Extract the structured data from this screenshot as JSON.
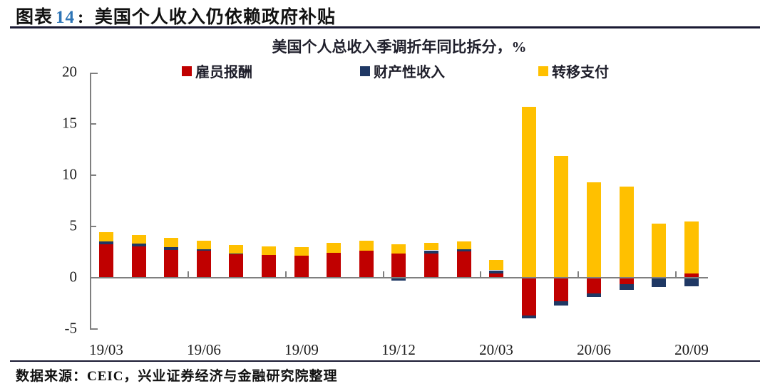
{
  "header": {
    "prefix": "图表",
    "number": "14",
    "colon": ":",
    "gap": "  ",
    "title": "美国个人收入仍依赖政府补贴"
  },
  "chart": {
    "title": "美国个人总收入季调折年同比拆分，%"
  },
  "chart_data": {
    "type": "bar",
    "stacked": true,
    "title": "美国个人总收入季调折年同比拆分，%",
    "x": [
      "19/03",
      "19/04",
      "19/05",
      "19/06",
      "19/07",
      "19/08",
      "19/09",
      "19/10",
      "19/11",
      "19/12",
      "20/01",
      "20/02",
      "20/03",
      "20/04",
      "20/05",
      "20/06",
      "20/07",
      "20/08",
      "20/09"
    ],
    "labeled_indices": [
      0,
      3,
      6,
      9,
      12,
      15,
      18
    ],
    "x_axis_labels": [
      "19/03",
      "19/06",
      "19/09",
      "19/12",
      "20/03",
      "20/06",
      "20/09"
    ],
    "series": [
      {
        "name": "雇员报酬",
        "color": "#C00000",
        "values": [
          3.2,
          3.0,
          2.65,
          2.55,
          2.25,
          2.15,
          2.1,
          2.35,
          2.6,
          2.3,
          2.35,
          2.5,
          0.4,
          -3.7,
          -2.3,
          -1.5,
          -0.6,
          -0.05,
          0.35
        ]
      },
      {
        "name": "财产性收入",
        "color": "#1F3864",
        "values": [
          0.3,
          0.25,
          0.25,
          0.15,
          0.05,
          0.0,
          0.0,
          0.0,
          0.0,
          -0.3,
          0.25,
          0.25,
          0.25,
          -0.25,
          -0.4,
          -0.35,
          -0.55,
          -0.85,
          -0.8
        ]
      },
      {
        "name": "转移支付",
        "color": "#FFC000",
        "values": [
          0.9,
          0.85,
          0.9,
          0.85,
          0.85,
          0.85,
          0.85,
          0.95,
          0.95,
          0.9,
          0.7,
          0.75,
          1.0,
          16.6,
          11.8,
          9.25,
          8.85,
          5.2,
          5.05
        ]
      }
    ],
    "ylim": [
      -5,
      20
    ],
    "yticks": [
      20,
      15,
      10,
      5,
      0,
      -5
    ],
    "legend_position": "top",
    "grid": false,
    "axis_color": "#7f7f7f"
  },
  "footer": {
    "source": "数据来源：CEIC，兴业证券经济与金融研究院整理"
  },
  "colors": {
    "accent_number": "#2E75B6",
    "divider": "#1a1a33",
    "red": "#C00000",
    "navy": "#1F3864",
    "gold": "#FFC000",
    "axis": "#7f7f7f"
  }
}
